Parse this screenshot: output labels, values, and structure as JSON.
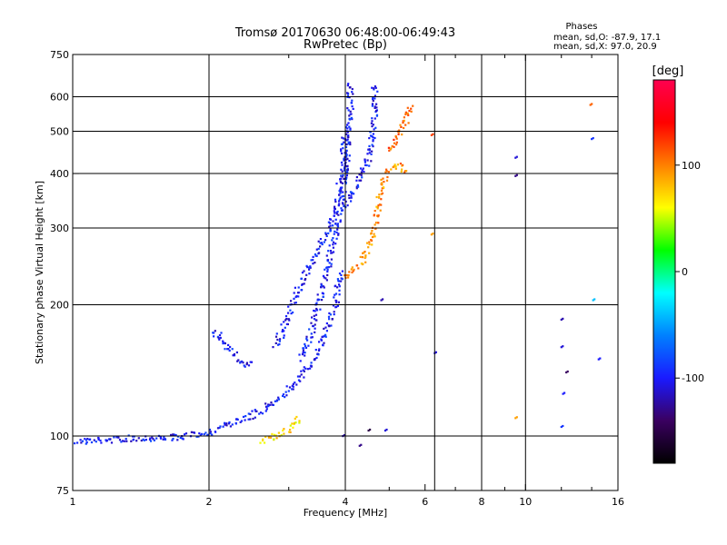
{
  "chart_data": {
    "type": "scatter",
    "title": "Tromsø 20170630 06:48:00-06:49:43",
    "subtitle": "RwPretec (Bp)",
    "xlabel": "Frequency [MHz]",
    "ylabel": "Stationary phase Virtual Height [km]",
    "xscale": "log",
    "yscale": "log",
    "xlim": [
      1,
      16
    ],
    "ylim": [
      75,
      750
    ],
    "x_ticks": [
      1,
      2,
      4,
      6,
      8,
      10,
      16
    ],
    "x_tick_labels": [
      "1",
      "2",
      "4",
      "6",
      "8",
      "10",
      "16"
    ],
    "x_grid": [
      2,
      4,
      6.3,
      8,
      10
    ],
    "x_minor_ticks": [
      3,
      5,
      7,
      9,
      12,
      14
    ],
    "y_ticks": [
      75,
      100,
      200,
      300,
      400,
      500,
      600,
      750
    ],
    "y_tick_labels": [
      "75",
      "100",
      "200",
      "300",
      "400",
      "500",
      "600",
      "750"
    ],
    "y_grid": [
      100,
      200,
      300,
      400,
      500,
      600
    ],
    "stats": {
      "header": "Phases",
      "line_o": "mean, sd,O: -87.9, 17.1",
      "line_x": "mean, sd,X:  97.0, 20.9"
    },
    "colorbar": {
      "label": "[deg]",
      "range": [
        -180,
        180
      ],
      "ticks": [
        100,
        0,
        -100
      ],
      "tick_labels": [
        "100",
        "0",
        "-100"
      ],
      "stops": [
        "#000000",
        "#3a0060",
        "#1a1aff",
        "#0080ff",
        "#00ffff",
        "#00ff00",
        "#ffff00",
        "#ff8000",
        "#ff0000",
        "#ff0050"
      ]
    },
    "traces": [
      {
        "name": "ground-trace-O",
        "phase": -100,
        "points": [
          [
            1.0,
            97
          ],
          [
            1.2,
            98
          ],
          [
            1.4,
            99
          ],
          [
            1.6,
            99
          ],
          [
            1.8,
            100
          ],
          [
            2.0,
            102
          ],
          [
            2.2,
            106
          ],
          [
            2.4,
            110
          ],
          [
            2.6,
            114
          ],
          [
            2.8,
            120
          ],
          [
            3.0,
            128
          ],
          [
            3.2,
            137
          ],
          [
            3.4,
            150
          ],
          [
            3.6,
            170
          ],
          [
            3.8,
            200
          ],
          [
            3.9,
            240
          ]
        ]
      },
      {
        "name": "spur-O",
        "phase": -100,
        "points": [
          [
            2.05,
            175
          ],
          [
            2.15,
            165
          ],
          [
            2.25,
            155
          ],
          [
            2.38,
            146
          ],
          [
            2.5,
            148
          ]
        ]
      },
      {
        "name": "layer-O-1",
        "phase": -100,
        "points": [
          [
            2.8,
            160
          ],
          [
            2.95,
            180
          ],
          [
            3.1,
            210
          ],
          [
            3.3,
            240
          ],
          [
            3.5,
            270
          ],
          [
            3.7,
            300
          ],
          [
            3.85,
            350
          ],
          [
            3.95,
            420
          ],
          [
            4.0,
            500
          ]
        ]
      },
      {
        "name": "layer-O-2",
        "phase": -100,
        "points": [
          [
            3.2,
            150
          ],
          [
            3.4,
            180
          ],
          [
            3.6,
            230
          ],
          [
            3.8,
            290
          ],
          [
            3.95,
            360
          ],
          [
            4.05,
            460
          ],
          [
            4.1,
            580
          ],
          [
            4.1,
            650
          ]
        ]
      },
      {
        "name": "layer-O-3",
        "phase": -100,
        "points": [
          [
            4.0,
            340
          ],
          [
            4.2,
            370
          ],
          [
            4.4,
            410
          ],
          [
            4.55,
            450
          ],
          [
            4.62,
            520
          ],
          [
            4.65,
            600
          ],
          [
            4.65,
            640
          ]
        ]
      },
      {
        "name": "layer-X-1",
        "phase": 95,
        "points": [
          [
            4.0,
            230
          ],
          [
            4.2,
            240
          ],
          [
            4.4,
            255
          ],
          [
            4.55,
            280
          ],
          [
            4.7,
            320
          ],
          [
            4.8,
            380
          ],
          [
            5.0,
            410
          ],
          [
            5.3,
            420
          ],
          [
            5.5,
            400
          ]
        ]
      },
      {
        "name": "layer-X-2",
        "phase": 110,
        "points": [
          [
            5.0,
            450
          ],
          [
            5.2,
            480
          ],
          [
            5.4,
            520
          ],
          [
            5.6,
            580
          ]
        ]
      },
      {
        "name": "low-X",
        "phase": 70,
        "points": [
          [
            2.6,
            97
          ],
          [
            2.8,
            100
          ],
          [
            3.0,
            104
          ],
          [
            3.2,
            110
          ]
        ]
      }
    ],
    "sparse_points": [
      {
        "x": 6.2,
        "y": 490,
        "phase": 120
      },
      {
        "x": 6.2,
        "y": 290,
        "phase": 90
      },
      {
        "x": 6.3,
        "y": 155,
        "phase": -110
      },
      {
        "x": 9.5,
        "y": 435,
        "phase": -110
      },
      {
        "x": 9.5,
        "y": 395,
        "phase": -130
      },
      {
        "x": 9.5,
        "y": 110,
        "phase": 90
      },
      {
        "x": 12.0,
        "y": 185,
        "phase": -120
      },
      {
        "x": 12.0,
        "y": 160,
        "phase": -110
      },
      {
        "x": 12.1,
        "y": 125,
        "phase": -100
      },
      {
        "x": 12.0,
        "y": 105,
        "phase": -90
      },
      {
        "x": 12.3,
        "y": 140,
        "phase": -140
      },
      {
        "x": 13.9,
        "y": 575,
        "phase": 110
      },
      {
        "x": 14.0,
        "y": 480,
        "phase": -90
      },
      {
        "x": 14.1,
        "y": 205,
        "phase": -40
      },
      {
        "x": 14.5,
        "y": 150,
        "phase": -100
      },
      {
        "x": 4.8,
        "y": 205,
        "phase": -120
      },
      {
        "x": 4.9,
        "y": 103,
        "phase": -110
      },
      {
        "x": 4.5,
        "y": 103,
        "phase": -150
      },
      {
        "x": 4.3,
        "y": 95,
        "phase": -130
      },
      {
        "x": 3.95,
        "y": 100,
        "phase": -120
      }
    ]
  }
}
